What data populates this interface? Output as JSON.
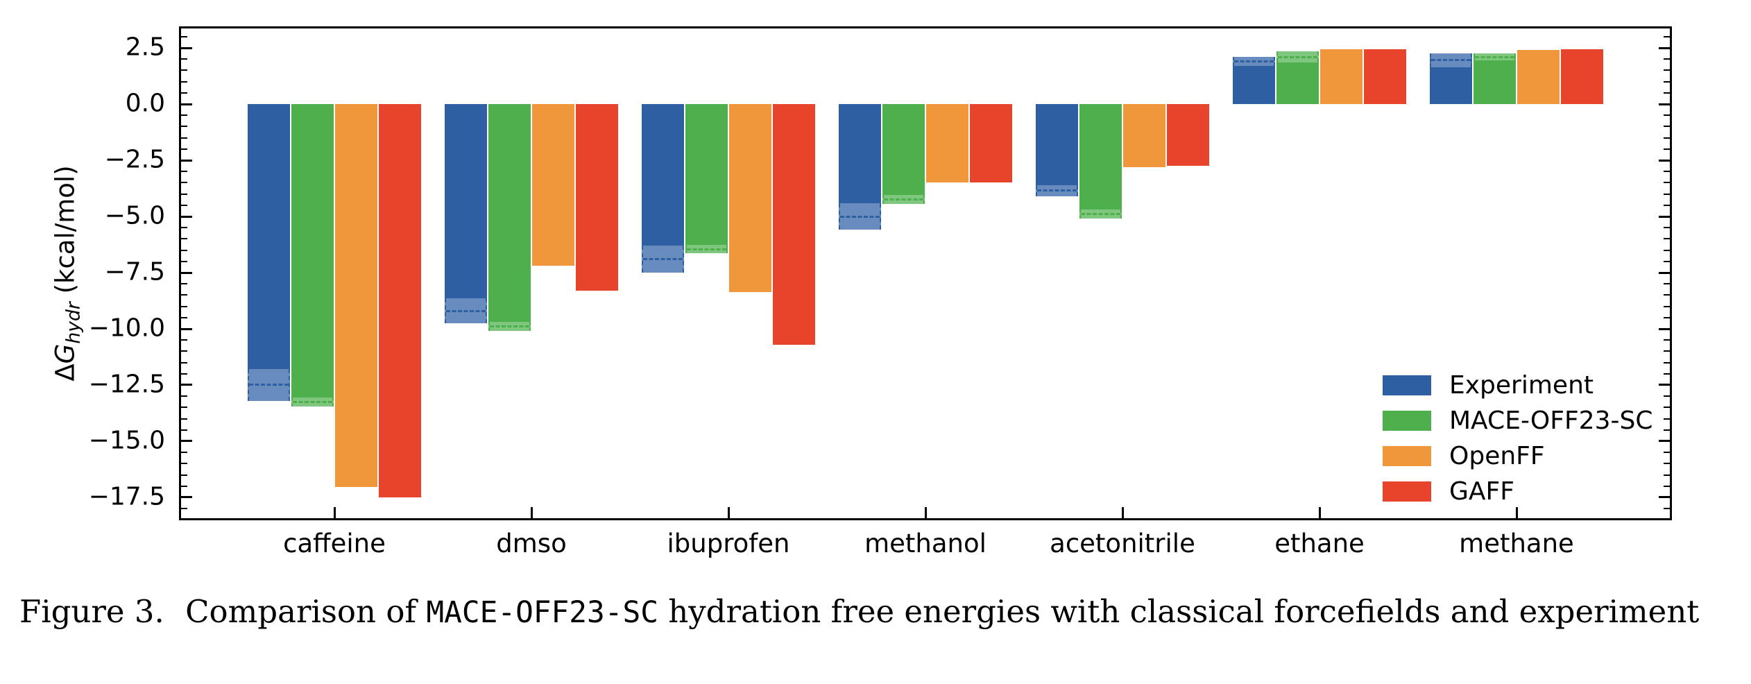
{
  "caption": {
    "label": "Figure 3.",
    "text_before": "Comparison of",
    "code": "MACE-OFF23-SC",
    "text_after": "hydration free energies with classical forcefields and experiment"
  },
  "axis": {
    "ylabel_delta": "Δ",
    "ylabel_g": "G",
    "ylabel_sub": "hydr",
    "ylabel_units": " (kcal/mol)"
  },
  "chart_data": {
    "type": "bar",
    "title": "",
    "xlabel": "",
    "ylabel": "ΔG_hydr (kcal/mol)",
    "grid": false,
    "legend_position": "lower right",
    "ylim": [
      -18.52,
      3.46
    ],
    "ytick_values": [
      2.5,
      0.0,
      -2.5,
      -5.0,
      -7.5,
      -10.0,
      -12.5,
      -15.0,
      -17.5
    ],
    "ytick_labels": [
      "2.5",
      "0.0",
      "−2.5",
      "−5.0",
      "−7.5",
      "−10.0",
      "−12.5",
      "−15.0",
      "−17.5"
    ],
    "minor_tick_step": 0.5,
    "categories": [
      "caffeine",
      "dmso",
      "ibuprofen",
      "methanol",
      "acetonitrile",
      "ethane",
      "methane"
    ],
    "series": [
      {
        "name": "Experiment",
        "color": "#2e5fa3",
        "values": [
          -12.5,
          -9.2,
          -6.9,
          -5.0,
          -3.85,
          1.9,
          1.95
        ],
        "errors": [
          0.7,
          0.55,
          0.6,
          0.6,
          0.25,
          0.2,
          0.3
        ]
      },
      {
        "name": "MACE-OFF23-SC",
        "color": "#4db04d",
        "values": [
          -13.25,
          -9.9,
          -6.45,
          -4.25,
          -4.9,
          2.1,
          2.1
        ],
        "errors": [
          0.2,
          0.2,
          0.2,
          0.2,
          0.2,
          0.25,
          0.15
        ]
      },
      {
        "name": "OpenFF",
        "color": "#f0963b",
        "values": [
          -17.05,
          -7.2,
          -8.35,
          -3.5,
          -2.8,
          2.45,
          2.4
        ],
        "errors": [
          0,
          0,
          0,
          0,
          0,
          0,
          0
        ]
      },
      {
        "name": "GAFF",
        "color": "#e8432b",
        "values": [
          -17.5,
          -8.3,
          -10.7,
          -3.5,
          -2.75,
          2.45,
          2.45
        ],
        "errors": [
          0,
          0,
          0,
          0,
          0,
          0,
          0
        ]
      }
    ]
  }
}
